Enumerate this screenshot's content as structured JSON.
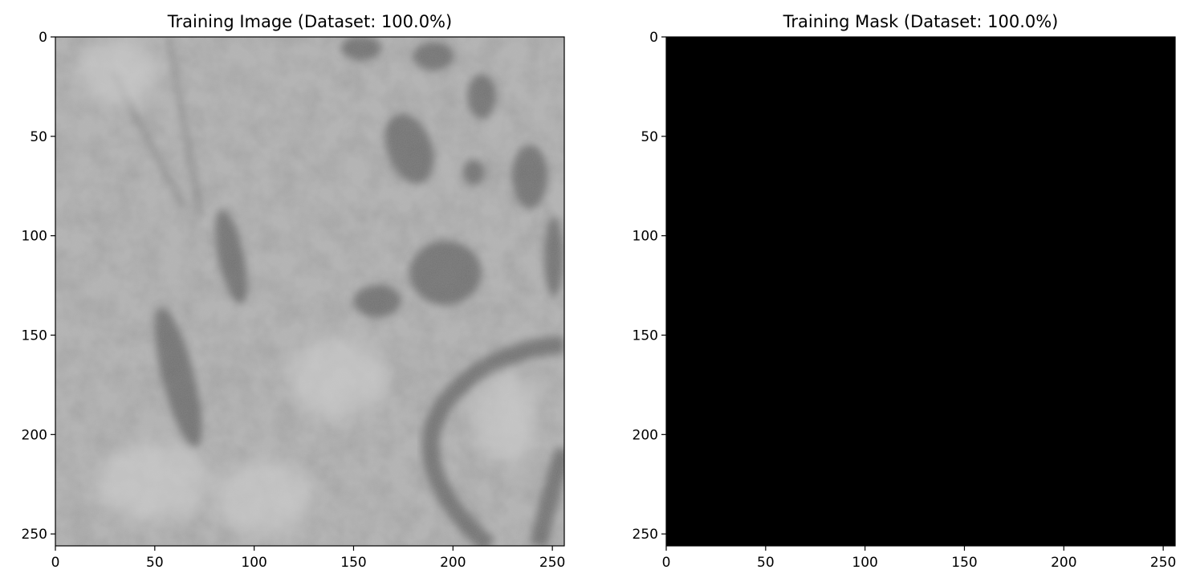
{
  "chart_data": [
    {
      "type": "image",
      "title": "Training Image (Dataset: 100.0%)",
      "xlim": [
        0,
        256
      ],
      "ylim": [
        256,
        0
      ],
      "xticks": [
        0,
        50,
        100,
        150,
        200,
        250
      ],
      "yticks": [
        0,
        50,
        100,
        150,
        200,
        250
      ],
      "colormap": "gray",
      "content": "grayscale microscopy texture",
      "colors": {
        "frame": "#000000"
      }
    },
    {
      "type": "image",
      "title": "Training Mask (Dataset: 100.0%)",
      "xlim": [
        0,
        256
      ],
      "ylim": [
        256,
        0
      ],
      "xticks": [
        0,
        50,
        100,
        150,
        200,
        250
      ],
      "yticks": [
        0,
        50,
        100,
        150,
        200,
        250
      ],
      "colormap": "gray",
      "mask_value": 0,
      "colors": {
        "fill": "#000000",
        "frame": "#000000"
      }
    }
  ]
}
